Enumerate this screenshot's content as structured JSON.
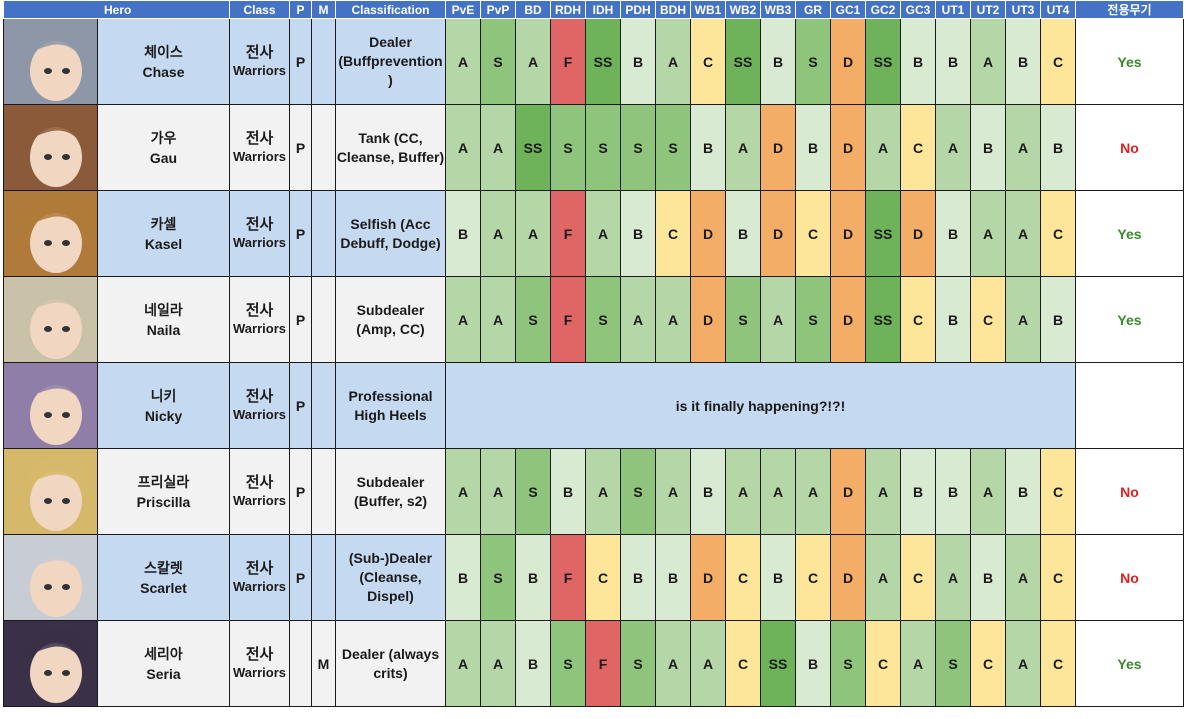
{
  "headers": {
    "hero": "Hero",
    "class": "Class",
    "p": "P",
    "m": "M",
    "classification": "Classification",
    "grades": [
      "PvE",
      "PvP",
      "BD",
      "RDH",
      "IDH",
      "PDH",
      "BDH",
      "WB1",
      "WB2",
      "WB3",
      "GR",
      "GC1",
      "GC2",
      "GC3",
      "UT1",
      "UT2",
      "UT3",
      "UT4"
    ],
    "weapon": "전용무기"
  },
  "grade_colors": {
    "SS": "#6eb35a",
    "S": "#8fc47c",
    "A": "#b5d6a6",
    "B": "#d9ead2",
    "C": "#fde59a",
    "D": "#f3ad66",
    "F": "#e06666"
  },
  "rows": [
    {
      "name_kr": "체이스",
      "name_en": "Chase",
      "class_kr": "전사",
      "class_en": "Warriors",
      "p": "P",
      "m": "",
      "classification": [
        "Dealer",
        "(Buffprevention",
        ")"
      ],
      "grades": [
        "A",
        "S",
        "A",
        "F",
        "SS",
        "B",
        "A",
        "C",
        "SS",
        "B",
        "S",
        "D",
        "SS",
        "B",
        "B",
        "A",
        "B",
        "C"
      ],
      "weapon": "Yes",
      "portrait": "#8d97a8"
    },
    {
      "name_kr": "가우",
      "name_en": "Gau",
      "class_kr": "전사",
      "class_en": "Warriors",
      "p": "P",
      "m": "",
      "classification": [
        "Tank (CC,",
        "Cleanse, Buffer)"
      ],
      "grades": [
        "A",
        "A",
        "SS",
        "S",
        "S",
        "S",
        "S",
        "B",
        "A",
        "D",
        "B",
        "D",
        "A",
        "C",
        "A",
        "B",
        "A",
        "B"
      ],
      "weapon": "No",
      "portrait": "#8a5a3a"
    },
    {
      "name_kr": "카셀",
      "name_en": "Kasel",
      "class_kr": "전사",
      "class_en": "Warriors",
      "p": "P",
      "m": "",
      "classification": [
        "Selfish (Acc",
        "Debuff, Dodge)"
      ],
      "grades": [
        "B",
        "A",
        "A",
        "F",
        "A",
        "B",
        "C",
        "D",
        "B",
        "D",
        "C",
        "D",
        "SS",
        "D",
        "B",
        "A",
        "A",
        "C"
      ],
      "weapon": "Yes",
      "portrait": "#b07a3a"
    },
    {
      "name_kr": "네일라",
      "name_en": "Naila",
      "class_kr": "전사",
      "class_en": "Warriors",
      "p": "P",
      "m": "",
      "classification": [
        "Subdealer",
        "(Amp, CC)"
      ],
      "grades": [
        "A",
        "A",
        "S",
        "F",
        "S",
        "A",
        "A",
        "D",
        "S",
        "A",
        "S",
        "D",
        "SS",
        "C",
        "B",
        "C",
        "A",
        "B"
      ],
      "weapon": "Yes",
      "portrait": "#c9c1a8"
    },
    {
      "name_kr": "니키",
      "name_en": "Nicky",
      "class_kr": "전사",
      "class_en": "Warriors",
      "p": "P",
      "m": "",
      "classification": [
        "Professional",
        "High Heels"
      ],
      "message": "is it finally happening?!?!",
      "grades": [],
      "weapon": "",
      "portrait": "#8f7fa8"
    },
    {
      "name_kr": "프리실라",
      "name_en": "Priscilla",
      "class_kr": "전사",
      "class_en": "Warriors",
      "p": "P",
      "m": "",
      "classification": [
        "Subdealer",
        "(Buffer, s2)"
      ],
      "grades": [
        "A",
        "A",
        "S",
        "B",
        "A",
        "S",
        "A",
        "B",
        "A",
        "A",
        "A",
        "D",
        "A",
        "B",
        "B",
        "A",
        "B",
        "C"
      ],
      "weapon": "No",
      "portrait": "#d6b86a"
    },
    {
      "name_kr": "스칼렛",
      "name_en": "Scarlet",
      "class_kr": "전사",
      "class_en": "Warriors",
      "p": "P",
      "m": "",
      "classification": [
        "(Sub-)Dealer",
        "(Cleanse,",
        "Dispel)"
      ],
      "grades": [
        "B",
        "S",
        "B",
        "F",
        "C",
        "B",
        "B",
        "D",
        "C",
        "B",
        "C",
        "D",
        "A",
        "C",
        "A",
        "B",
        "A",
        "C"
      ],
      "weapon": "No",
      "portrait": "#c8ccd4"
    },
    {
      "name_kr": "세리아",
      "name_en": "Seria",
      "class_kr": "전사",
      "class_en": "Warriors",
      "p": "",
      "m": "M",
      "classification": [
        "Dealer (always",
        "crits)"
      ],
      "grades": [
        "A",
        "A",
        "B",
        "S",
        "F",
        "S",
        "A",
        "A",
        "C",
        "SS",
        "B",
        "S",
        "C",
        "A",
        "S",
        "C",
        "A",
        "C"
      ],
      "weapon": "Yes",
      "portrait": "#3a3048"
    }
  ]
}
